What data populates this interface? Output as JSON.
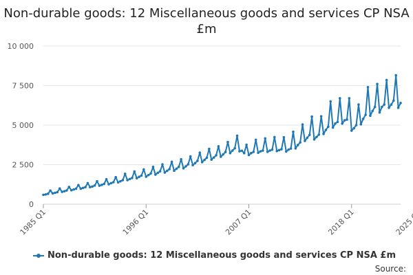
{
  "chart_data": {
    "type": "line",
    "title": "Non-durable goods: 12 Miscellaneous goods and services CP NSA £m",
    "xlabel": "",
    "ylabel": "",
    "ylim": [
      0,
      10000
    ],
    "y_ticks": [
      0,
      2500,
      5000,
      7500,
      10000
    ],
    "y_tick_labels": [
      "0",
      "2 500",
      "5 000",
      "7 500",
      "10 000"
    ],
    "x_tick_labels": [
      "1985 Q1",
      "1996 Q1",
      "2007 Q1",
      "2018 Q1",
      "2025 Q2"
    ],
    "x_tick_indices": [
      0,
      44,
      88,
      132,
      161
    ],
    "grid": true,
    "legend_position": "bottom",
    "color": "#1f78b4",
    "series": [
      {
        "name": "Non-durable goods: 12 Miscellaneous goods and services CP NSA £m",
        "values": [
          590,
          620,
          660,
          860,
          680,
          720,
          760,
          990,
          780,
          820,
          870,
          1090,
          880,
          930,
          980,
          1210,
          980,
          1030,
          1080,
          1330,
          1080,
          1120,
          1180,
          1450,
          1170,
          1220,
          1280,
          1580,
          1260,
          1330,
          1390,
          1710,
          1380,
          1450,
          1520,
          1920,
          1520,
          1590,
          1660,
          2070,
          1640,
          1730,
          1810,
          2200,
          1740,
          1840,
          1940,
          2360,
          1870,
          1980,
          2080,
          2520,
          2000,
          2110,
          2220,
          2680,
          2120,
          2240,
          2360,
          2840,
          2270,
          2390,
          2520,
          3020,
          2470,
          2600,
          2740,
          3260,
          2660,
          2800,
          2940,
          3500,
          2820,
          2950,
          3090,
          3660,
          3000,
          3150,
          3300,
          3930,
          3230,
          3390,
          3540,
          4330,
          3350,
          3380,
          3230,
          3760,
          3110,
          3230,
          3310,
          4070,
          3250,
          3340,
          3390,
          4160,
          3310,
          3390,
          3450,
          4240,
          3360,
          3420,
          3480,
          4230,
          3330,
          3450,
          3520,
          4580,
          3530,
          3740,
          3910,
          5040,
          4000,
          4200,
          4380,
          5540,
          4100,
          4250,
          4400,
          5560,
          4440,
          4700,
          4900,
          6500,
          4850,
          5100,
          5200,
          6700,
          5100,
          5300,
          5350,
          6700,
          4650,
          4800,
          5000,
          6300,
          5050,
          5400,
          5650,
          7400,
          5600,
          5900,
          6150,
          7600,
          5800,
          6150,
          6300,
          7850,
          6100,
          6300,
          6550,
          8150,
          6100,
          6400
        ]
      }
    ]
  },
  "legend": {
    "label": "Non-durable goods: 12 Miscellaneous goods and services CP NSA £m"
  },
  "source": {
    "label": "Source:"
  }
}
